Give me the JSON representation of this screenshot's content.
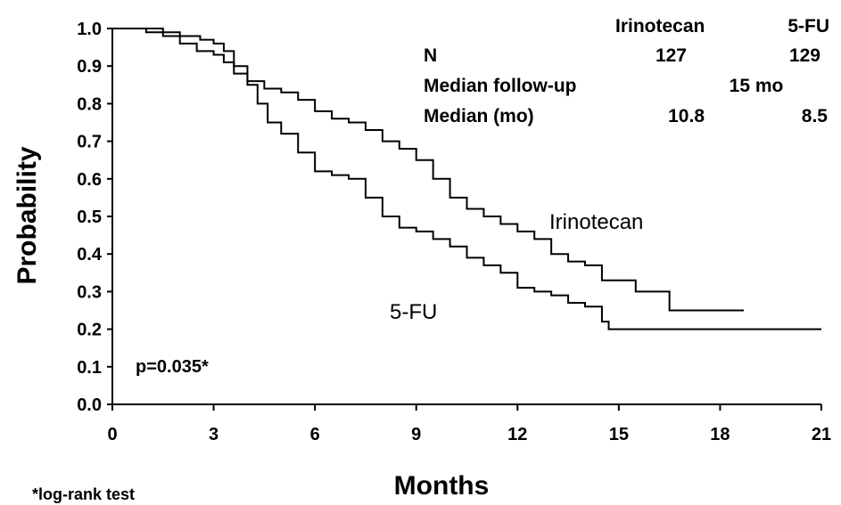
{
  "chart_data": {
    "type": "line",
    "xlabel": "Months",
    "ylabel": "Probability",
    "xlim": [
      0,
      21
    ],
    "ylim": [
      0,
      1
    ],
    "xticks": [
      "0",
      "3",
      "6",
      "9",
      "12",
      "15",
      "18",
      "21"
    ],
    "yticks": [
      "0.0",
      "0.1",
      "0.2",
      "0.3",
      "0.4",
      "0.5",
      "0.6",
      "0.7",
      "0.8",
      "0.9",
      "1.0"
    ],
    "grid": false,
    "series": [
      {
        "name": "Irinotecan",
        "step": true,
        "x": [
          0,
          1.0,
          1.5,
          2.0,
          2.6,
          3.0,
          3.3,
          3.6,
          4.0,
          4.5,
          5.0,
          5.5,
          6.0,
          6.5,
          7.0,
          7.5,
          8.0,
          8.5,
          9.0,
          9.5,
          10.0,
          10.5,
          11.0,
          11.5,
          12.0,
          12.5,
          13.0,
          13.5,
          14.0,
          14.5,
          15.0,
          15.5,
          16.0,
          16.5,
          17.0,
          18.0,
          18.7
        ],
        "y": [
          1.0,
          1.0,
          0.99,
          0.98,
          0.97,
          0.96,
          0.94,
          0.9,
          0.86,
          0.84,
          0.83,
          0.81,
          0.78,
          0.76,
          0.75,
          0.73,
          0.7,
          0.68,
          0.65,
          0.6,
          0.55,
          0.52,
          0.5,
          0.48,
          0.46,
          0.44,
          0.4,
          0.38,
          0.37,
          0.33,
          0.33,
          0.3,
          0.3,
          0.25,
          0.25,
          0.25,
          0.25
        ]
      },
      {
        "name": "5-FU",
        "step": true,
        "x": [
          0,
          1.0,
          1.5,
          2.0,
          2.5,
          3.0,
          3.3,
          3.6,
          4.0,
          4.3,
          4.6,
          5.0,
          5.5,
          6.0,
          6.5,
          7.0,
          7.5,
          8.0,
          8.5,
          9.0,
          9.5,
          10.0,
          10.5,
          11.0,
          11.5,
          12.0,
          12.5,
          13.0,
          13.5,
          14.0,
          14.5,
          14.7,
          15.0,
          18.0,
          21.0
        ],
        "y": [
          1.0,
          0.99,
          0.98,
          0.96,
          0.94,
          0.93,
          0.91,
          0.88,
          0.85,
          0.8,
          0.75,
          0.72,
          0.67,
          0.62,
          0.61,
          0.6,
          0.55,
          0.5,
          0.47,
          0.46,
          0.44,
          0.42,
          0.39,
          0.37,
          0.35,
          0.31,
          0.3,
          0.29,
          0.27,
          0.26,
          0.22,
          0.2,
          0.2,
          0.2,
          0.2
        ]
      }
    ],
    "annotations": {
      "irinotecan_label": "Irinotecan",
      "fu_label": "5-FU",
      "p_value": "p=0.035*",
      "footnote": "*log-rank test"
    },
    "summary_table": {
      "col_headers": [
        "Irinotecan",
        "5-FU"
      ],
      "rows": [
        {
          "label": "N",
          "values": [
            "127",
            "129"
          ]
        },
        {
          "label": "Median follow-up",
          "values": [
            "15 mo"
          ]
        },
        {
          "label": "Median (mo)",
          "values": [
            "10.8",
            "8.5"
          ]
        }
      ]
    }
  }
}
